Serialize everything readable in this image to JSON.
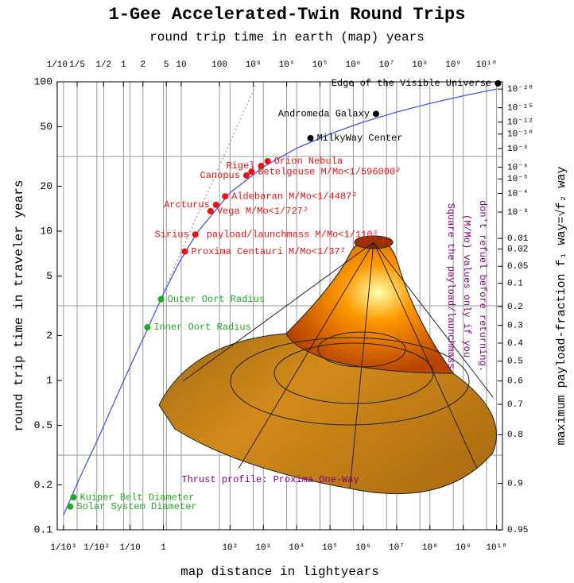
{
  "chart_data": {
    "type": "line",
    "title": "1-Gee Accelerated-Twin Round Trips",
    "subtitle": "round trip time in earth (map) years",
    "x_label": "map distance in lightyears",
    "y_label": "round trip time in traveler years",
    "y2_label": "maximum payload-fraction f₁ way=√f₂ way",
    "xscale": "log",
    "yscale": "log",
    "xlim": [
      0.00065,
      15000000000
    ],
    "ylim": [
      0.1,
      100
    ],
    "xticks": [
      {
        "value": 0.001,
        "label": "1/10³"
      },
      {
        "value": 0.01,
        "label": "1/10²"
      },
      {
        "value": 0.1,
        "label": "1/10"
      },
      1,
      {
        "value": 100,
        "label": "10²"
      },
      {
        "value": 1000,
        "label": "10³"
      },
      {
        "value": 10000,
        "label": "10⁴"
      },
      {
        "value": 100000,
        "label": "10⁵"
      },
      {
        "value": 1000000,
        "label": "10⁶"
      },
      {
        "value": 10000000,
        "label": "10⁷"
      },
      {
        "value": 100000000,
        "label": "10⁸"
      },
      {
        "value": 1000000000,
        "label": "10⁹"
      },
      {
        "value": 10000000000,
        "label": "10¹⁰"
      }
    ],
    "top_ticks": [
      {
        "value": 0.1,
        "label": "1/10"
      },
      {
        "value": 0.2,
        "label": "1/5"
      },
      {
        "value": 0.5,
        "label": "1/2"
      },
      1,
      2,
      5,
      10,
      100,
      {
        "value": 1000,
        "label": "10³"
      },
      {
        "value": 10000,
        "label": "10⁴"
      },
      {
        "value": 100000,
        "label": "10⁵"
      },
      {
        "value": 1000000,
        "label": "10⁶"
      },
      {
        "value": 10000000,
        "label": "10⁷"
      },
      {
        "value": 100000000,
        "label": "10⁸"
      },
      {
        "value": 1000000000,
        "label": "10⁹"
      },
      {
        "value": 10000000000,
        "label": "10¹⁰"
      }
    ],
    "yticks": [
      0.1,
      0.2,
      0.5,
      1,
      2,
      5,
      10,
      20,
      50,
      100
    ],
    "ygrid": [
      0.316,
      3.16,
      31.6
    ],
    "y2ticks": [
      {
        "value": 1e-20,
        "label": "10⁻²⁰"
      },
      {
        "value": 1e-15,
        "label": "10⁻¹⁵"
      },
      {
        "value": 1e-12,
        "label": "10⁻¹²"
      },
      {
        "value": 1e-10,
        "label": "10⁻¹⁰"
      },
      {
        "value": 1e-08,
        "label": "10⁻⁸"
      },
      {
        "value": 1e-06,
        "label": "10⁻⁶"
      },
      {
        "value": 1e-05,
        "label": "10⁻⁵"
      },
      {
        "value": 0.0001,
        "label": "10⁻⁴"
      },
      {
        "value": 0.001,
        "label": "10⁻³"
      },
      0.01,
      0.02,
      0.05,
      0.1,
      0.2,
      0.3,
      0.4,
      0.5,
      0.6,
      0.7,
      0.8,
      0.9,
      0.95
    ],
    "curves": [
      {
        "color": "#4455ee",
        "style": "solid",
        "x": [
          0.001,
          0.003,
          0.01,
          0.03,
          0.1,
          0.3,
          1,
          3,
          10,
          100,
          1000,
          10000,
          100000,
          1000000,
          10000000,
          100000000,
          1000000000,
          10000000000
        ],
        "values": [
          0.125,
          0.22,
          0.39,
          0.68,
          1.24,
          2.1,
          3.8,
          6.2,
          9.7,
          18.1,
          26.9,
          35.9,
          44.8,
          53.8,
          62.7,
          71.7,
          80.6,
          89.5
        ]
      },
      {
        "color": "#aaaaaa",
        "style": "dotted",
        "x": [
          0.85,
          10,
          100,
          600
        ],
        "values": [
          3.6,
          12.5,
          39.4,
          96
        ]
      }
    ],
    "points": [
      {
        "label": "Solar System Diameter",
        "side": "right",
        "color": "#22aa22",
        "x": 0.0016,
        "y": 0.143
      },
      {
        "label": "Kuiper Belt Diameter",
        "side": "right",
        "color": "#22aa22",
        "x": 0.002,
        "y": 0.165
      },
      {
        "label": "Inner Oort Radius",
        "side": "right",
        "color": "#22aa22",
        "x": 0.33,
        "y": 2.27
      },
      {
        "label": "Outer Oort Radius",
        "side": "right",
        "color": "#22aa22",
        "x": 0.85,
        "y": 3.5
      },
      {
        "label": "Proxima Centauri M/Mo<1/37²",
        "side": "right",
        "color": "#ee1111",
        "x": 4.4,
        "y": 7.3
      },
      {
        "label": "Sirius",
        "side": "left",
        "color": "#ee1111",
        "x": 9.1,
        "y": 9.5,
        "note": "payload/launchmass M/Mo<1/110²"
      },
      {
        "label": "Vega M/Mo<1/727²",
        "side": "right",
        "color": "#ee1111",
        "x": 26,
        "y": 13.6
      },
      {
        "label": "Arcturus",
        "side": "left",
        "color": "#ee1111",
        "x": 38,
        "y": 15
      },
      {
        "label": "Aldebaran M/Mo<1/4487²",
        "side": "right",
        "color": "#ee1111",
        "x": 71,
        "y": 17.1
      },
      {
        "label": "Canopus",
        "side": "left",
        "color": "#ee1111",
        "x": 310,
        "y": 23.6
      },
      {
        "label": "Betelgeuse M/Mo<1/596000²",
        "side": "right",
        "color": "#ee1111",
        "x": 440,
        "y": 25
      },
      {
        "label": "Rigel",
        "side": "left",
        "color": "#ee1111",
        "x": 860,
        "y": 27.3
      },
      {
        "label": "Orion Nebula",
        "side": "right",
        "color": "#ee1111",
        "x": 1344,
        "y": 29.4
      },
      {
        "label": "MilkyWay Center",
        "side": "right",
        "color": "#000000",
        "x": 26000,
        "y": 41.9
      },
      {
        "label": "Andromeda Galaxy",
        "side": "left",
        "color": "#000000",
        "x": 2400000,
        "y": 61
      },
      {
        "label": "Edge of the Visible Universe",
        "side": "left",
        "color": "#000000",
        "x": 11000000000,
        "y": 97.6
      }
    ],
    "note_lines": [
      "Square the payload/launchmass",
      "(M/Mo) values only if you",
      "don't refuel before returning."
    ],
    "thrust_label": "Thrust profile: Proxima One-Way"
  }
}
